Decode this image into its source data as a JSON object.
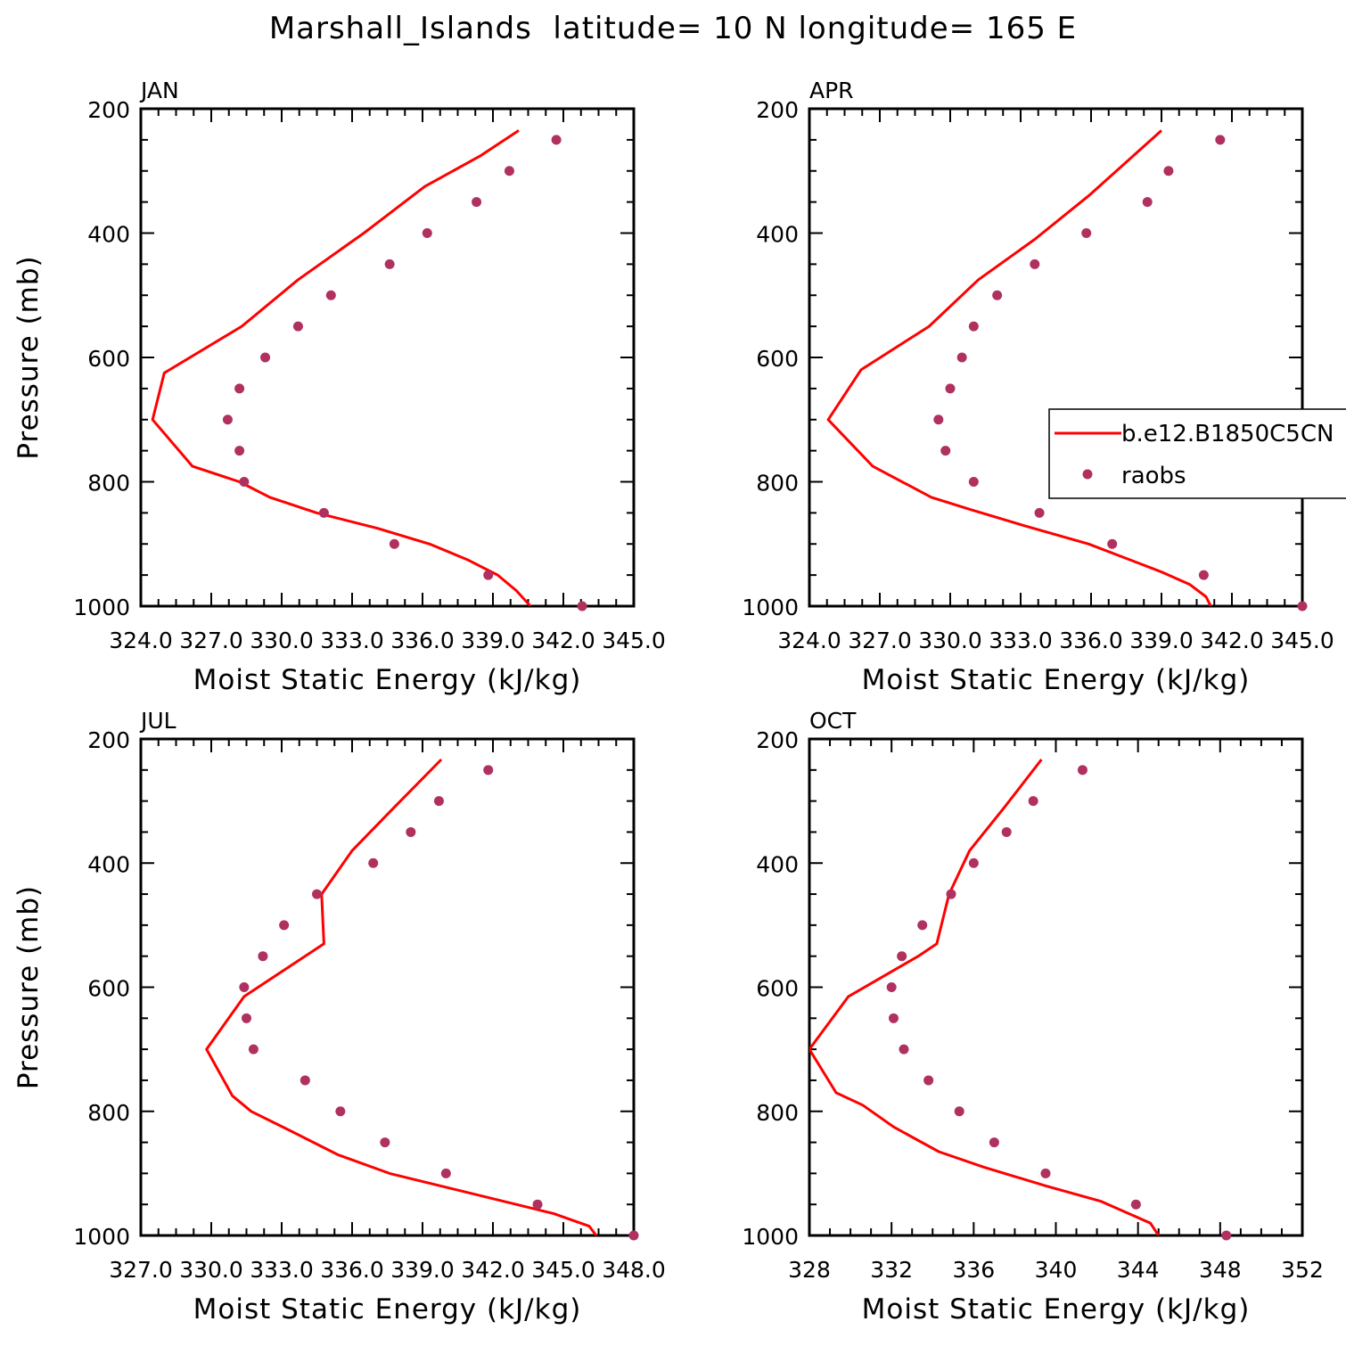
{
  "title": "Marshall_Islands  latitude= 10 N longitude= 165 E",
  "legend": {
    "model_label": "b.e12.B1850C5CN",
    "obs_label": "raobs"
  },
  "colors": {
    "model_line": "#ff0000",
    "obs_marker": "#b03060"
  },
  "chart_data": [
    {
      "type": "line",
      "panel_label": "JAN",
      "xlabel": "Moist Static Energy (kJ/kg)",
      "ylabel": "Pressure (mb)",
      "xlim": [
        324.0,
        345.0
      ],
      "ylim": [
        200,
        1000
      ],
      "y_inverted": true,
      "x_tick_labels": [
        "324.0",
        "327.0",
        "330.0",
        "333.0",
        "336.0",
        "339.0",
        "342.0",
        "345.0"
      ],
      "y_tick_labels": [
        "200",
        "400",
        "600",
        "800",
        "1000"
      ],
      "series": [
        {
          "name": "b.e12.B1850C5CN",
          "style": "line",
          "points": [
            [
              340.6,
              1000
            ],
            [
              340.0,
              975
            ],
            [
              339.2,
              950
            ],
            [
              337.9,
              925
            ],
            [
              336.3,
              900
            ],
            [
              334.1,
              875
            ],
            [
              331.5,
              850
            ],
            [
              329.5,
              825
            ],
            [
              328.2,
              800
            ],
            [
              326.2,
              775
            ],
            [
              324.5,
              700
            ],
            [
              325.0,
              625
            ],
            [
              328.3,
              550
            ],
            [
              330.7,
              475
            ],
            [
              333.5,
              400
            ],
            [
              336.1,
              325
            ],
            [
              338.5,
              275
            ],
            [
              340.1,
              235
            ]
          ]
        },
        {
          "name": "raobs",
          "style": "markers",
          "points": [
            [
              342.8,
              1000
            ],
            [
              338.8,
              950
            ],
            [
              334.8,
              900
            ],
            [
              331.8,
              850
            ],
            [
              328.4,
              800
            ],
            [
              328.2,
              750
            ],
            [
              327.7,
              700
            ],
            [
              328.2,
              650
            ],
            [
              329.3,
              600
            ],
            [
              330.7,
              550
            ],
            [
              332.1,
              500
            ],
            [
              334.6,
              450
            ],
            [
              336.2,
              400
            ],
            [
              338.3,
              350
            ],
            [
              339.7,
              300
            ],
            [
              341.7,
              250
            ]
          ]
        }
      ]
    },
    {
      "type": "line",
      "panel_label": "APR",
      "xlabel": "Moist Static Energy (kJ/kg)",
      "ylabel": "",
      "xlim": [
        324.0,
        345.0
      ],
      "ylim": [
        200,
        1000
      ],
      "y_inverted": true,
      "x_tick_labels": [
        "324.0",
        "327.0",
        "330.0",
        "333.0",
        "336.0",
        "339.0",
        "342.0",
        "345.0"
      ],
      "y_tick_labels": [
        "200",
        "400",
        "600",
        "800",
        "1000"
      ],
      "series": [
        {
          "name": "b.e12.B1850C5CN",
          "style": "line",
          "points": [
            [
              341.1,
              1000
            ],
            [
              340.9,
              985
            ],
            [
              340.2,
              965
            ],
            [
              339.0,
              945
            ],
            [
              335.9,
              900
            ],
            [
              333.1,
              870
            ],
            [
              330.9,
              845
            ],
            [
              329.2,
              825
            ],
            [
              326.7,
              775
            ],
            [
              324.8,
              700
            ],
            [
              326.2,
              620
            ],
            [
              329.1,
              550
            ],
            [
              331.2,
              475
            ],
            [
              333.6,
              410
            ],
            [
              335.9,
              340
            ],
            [
              339.0,
              235
            ]
          ]
        },
        {
          "name": "raobs",
          "style": "markers",
          "points": [
            [
              345.0,
              1000
            ],
            [
              340.8,
              950
            ],
            [
              336.9,
              900
            ],
            [
              333.8,
              850
            ],
            [
              331.0,
              800
            ],
            [
              329.8,
              750
            ],
            [
              329.5,
              700
            ],
            [
              330.0,
              650
            ],
            [
              330.5,
              600
            ],
            [
              331.0,
              550
            ],
            [
              332.0,
              500
            ],
            [
              333.6,
              450
            ],
            [
              335.8,
              400
            ],
            [
              338.4,
              350
            ],
            [
              339.3,
              300
            ],
            [
              341.5,
              250
            ]
          ]
        }
      ]
    },
    {
      "type": "line",
      "panel_label": "JUL",
      "xlabel": "Moist Static Energy (kJ/kg)",
      "ylabel": "Pressure (mb)",
      "xlim": [
        327.0,
        348.0
      ],
      "ylim": [
        200,
        1000
      ],
      "y_inverted": true,
      "x_tick_labels": [
        "327.0",
        "330.0",
        "333.0",
        "336.0",
        "339.0",
        "342.0",
        "345.0",
        "348.0"
      ],
      "y_tick_labels": [
        "200",
        "400",
        "600",
        "800",
        "1000"
      ],
      "series": [
        {
          "name": "b.e12.B1850C5CN",
          "style": "line",
          "points": [
            [
              346.4,
              1003
            ],
            [
              346.1,
              985
            ],
            [
              344.6,
              965
            ],
            [
              343.0,
              950
            ],
            [
              340.3,
              925
            ],
            [
              337.6,
              900
            ],
            [
              335.4,
              870
            ],
            [
              333.3,
              830
            ],
            [
              331.7,
              800
            ],
            [
              330.9,
              775
            ],
            [
              329.8,
              700
            ],
            [
              331.4,
              615
            ],
            [
              334.8,
              530
            ],
            [
              334.7,
              450
            ],
            [
              336.0,
              380
            ],
            [
              337.8,
              310
            ],
            [
              339.8,
              233
            ]
          ]
        },
        {
          "name": "raobs",
          "style": "markers",
          "points": [
            [
              348.0,
              1000
            ],
            [
              343.9,
              950
            ],
            [
              340.0,
              900
            ],
            [
              337.4,
              850
            ],
            [
              335.5,
              800
            ],
            [
              334.0,
              750
            ],
            [
              331.8,
              700
            ],
            [
              331.5,
              650
            ],
            [
              331.4,
              600
            ],
            [
              332.2,
              550
            ],
            [
              333.1,
              500
            ],
            [
              334.5,
              450
            ],
            [
              336.9,
              400
            ],
            [
              338.5,
              350
            ],
            [
              339.7,
              300
            ],
            [
              341.8,
              250
            ]
          ]
        }
      ]
    },
    {
      "type": "line",
      "panel_label": "OCT",
      "xlabel": "Moist Static Energy (kJ/kg)",
      "ylabel": "",
      "xlim": [
        328,
        352
      ],
      "ylim": [
        200,
        1000
      ],
      "y_inverted": true,
      "x_tick_labels": [
        "328",
        "332",
        "336",
        "340",
        "344",
        "348",
        "352"
      ],
      "y_tick_labels": [
        "200",
        "400",
        "600",
        "800",
        "1000"
      ],
      "series": [
        {
          "name": "b.e12.B1850C5CN",
          "style": "line",
          "points": [
            [
              345.0,
              1003
            ],
            [
              344.6,
              980
            ],
            [
              342.2,
              945
            ],
            [
              339.5,
              920
            ],
            [
              336.5,
              890
            ],
            [
              334.3,
              865
            ],
            [
              332.1,
              825
            ],
            [
              330.6,
              790
            ],
            [
              329.3,
              770
            ],
            [
              328.0,
              700
            ],
            [
              329.9,
              615
            ],
            [
              333.3,
              550
            ],
            [
              334.2,
              530
            ],
            [
              334.8,
              450
            ],
            [
              335.8,
              380
            ],
            [
              337.5,
              310
            ],
            [
              339.3,
              233
            ]
          ]
        },
        {
          "name": "raobs",
          "style": "markers",
          "points": [
            [
              348.3,
              1000
            ],
            [
              343.9,
              950
            ],
            [
              339.5,
              900
            ],
            [
              337.0,
              850
            ],
            [
              335.3,
              800
            ],
            [
              333.8,
              750
            ],
            [
              332.6,
              700
            ],
            [
              332.1,
              650
            ],
            [
              332.0,
              600
            ],
            [
              332.5,
              550
            ],
            [
              333.5,
              500
            ],
            [
              334.9,
              450
            ],
            [
              336.0,
              400
            ],
            [
              337.6,
              350
            ],
            [
              338.9,
              300
            ],
            [
              341.3,
              250
            ]
          ]
        }
      ]
    }
  ]
}
